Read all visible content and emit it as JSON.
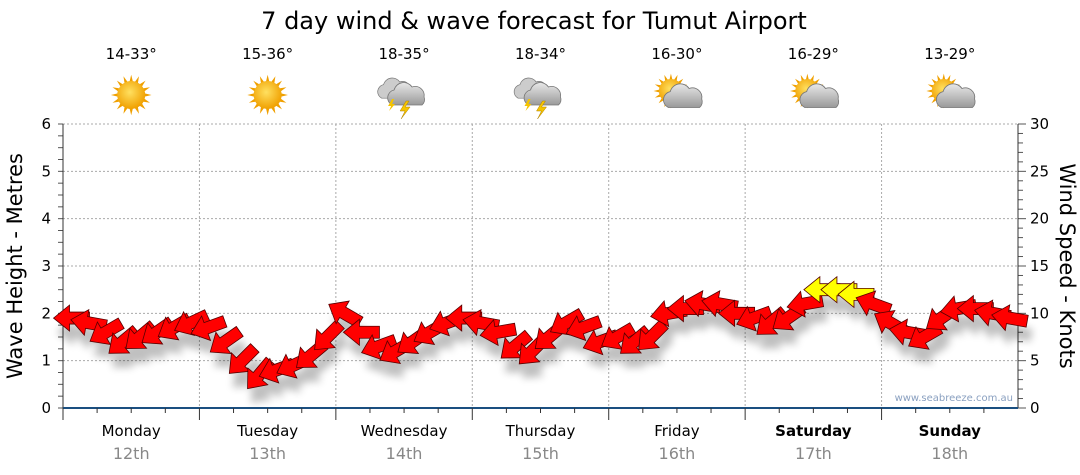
{
  "chart_data": {
    "type": "line",
    "title": "7 day wind & wave forecast for Tumut Airport",
    "ylabel_left": "Wave Height - Metres",
    "ylabel_right": "Wind Speed - Knots",
    "ylim_left": [
      0,
      6
    ],
    "ylim_right": [
      0,
      30
    ],
    "yticks_left": [
      "0",
      "1",
      "2",
      "3",
      "4",
      "5",
      "6"
    ],
    "yticks_right": [
      "0",
      "5",
      "10",
      "15",
      "20",
      "25",
      "30"
    ],
    "grid": true,
    "days": [
      {
        "day": "Monday",
        "date": "12th",
        "bold": false,
        "temp": "14-33°",
        "icon": "sunny-icon"
      },
      {
        "day": "Tuesday",
        "date": "13th",
        "bold": false,
        "temp": "15-36°",
        "icon": "sunny-icon"
      },
      {
        "day": "Wednesday",
        "date": "14th",
        "bold": false,
        "temp": "18-35°",
        "icon": "thunderstorm-icon"
      },
      {
        "day": "Thursday",
        "date": "15th",
        "bold": false,
        "temp": "18-34°",
        "icon": "thunderstorm-icon"
      },
      {
        "day": "Friday",
        "date": "16th",
        "bold": false,
        "temp": "16-30°",
        "icon": "partly-cloudy-icon"
      },
      {
        "day": "Saturday",
        "date": "17th",
        "bold": true,
        "temp": "16-29°",
        "icon": "partly-cloudy-icon"
      },
      {
        "day": "Sunday",
        "date": "18th",
        "bold": true,
        "temp": "13-29°",
        "icon": "partly-cloudy-icon"
      }
    ],
    "series": [
      {
        "name": "Wind speed (knots)",
        "points_per_day": 8,
        "values": [
          9.5,
          9,
          8,
          7,
          7.5,
          8,
          8.5,
          9,
          8.5,
          7,
          5,
          3.5,
          4,
          4.5,
          5.5,
          7.5,
          10,
          8,
          6.5,
          6,
          7,
          8,
          9,
          9.5,
          9,
          8,
          6.5,
          6,
          7.5,
          9,
          8.5,
          7,
          7.5,
          7,
          7.5,
          10,
          10.5,
          11,
          11,
          10,
          9.5,
          9,
          9.5,
          11,
          12.5,
          12.5,
          12,
          11,
          9,
          8,
          7.5,
          9.5,
          10.5,
          10.5,
          10,
          9.5
        ],
        "direction_deg": [
          270,
          280,
          240,
          230,
          230,
          235,
          240,
          245,
          250,
          235,
          225,
          220,
          250,
          245,
          230,
          225,
          300,
          270,
          250,
          240,
          235,
          240,
          250,
          270,
          280,
          260,
          230,
          225,
          230,
          240,
          250,
          250,
          240,
          230,
          225,
          260,
          270,
          280,
          280,
          270,
          250,
          230,
          235,
          260,
          270,
          270,
          270,
          290,
          300,
          280,
          240,
          235,
          260,
          270,
          280,
          280
        ],
        "strong_threshold": 12,
        "colors": {
          "normal": "#ff0000",
          "strong": "#ffff00",
          "outline": "#550000"
        }
      }
    ],
    "watermark": "www.seabreeze.com.au"
  }
}
